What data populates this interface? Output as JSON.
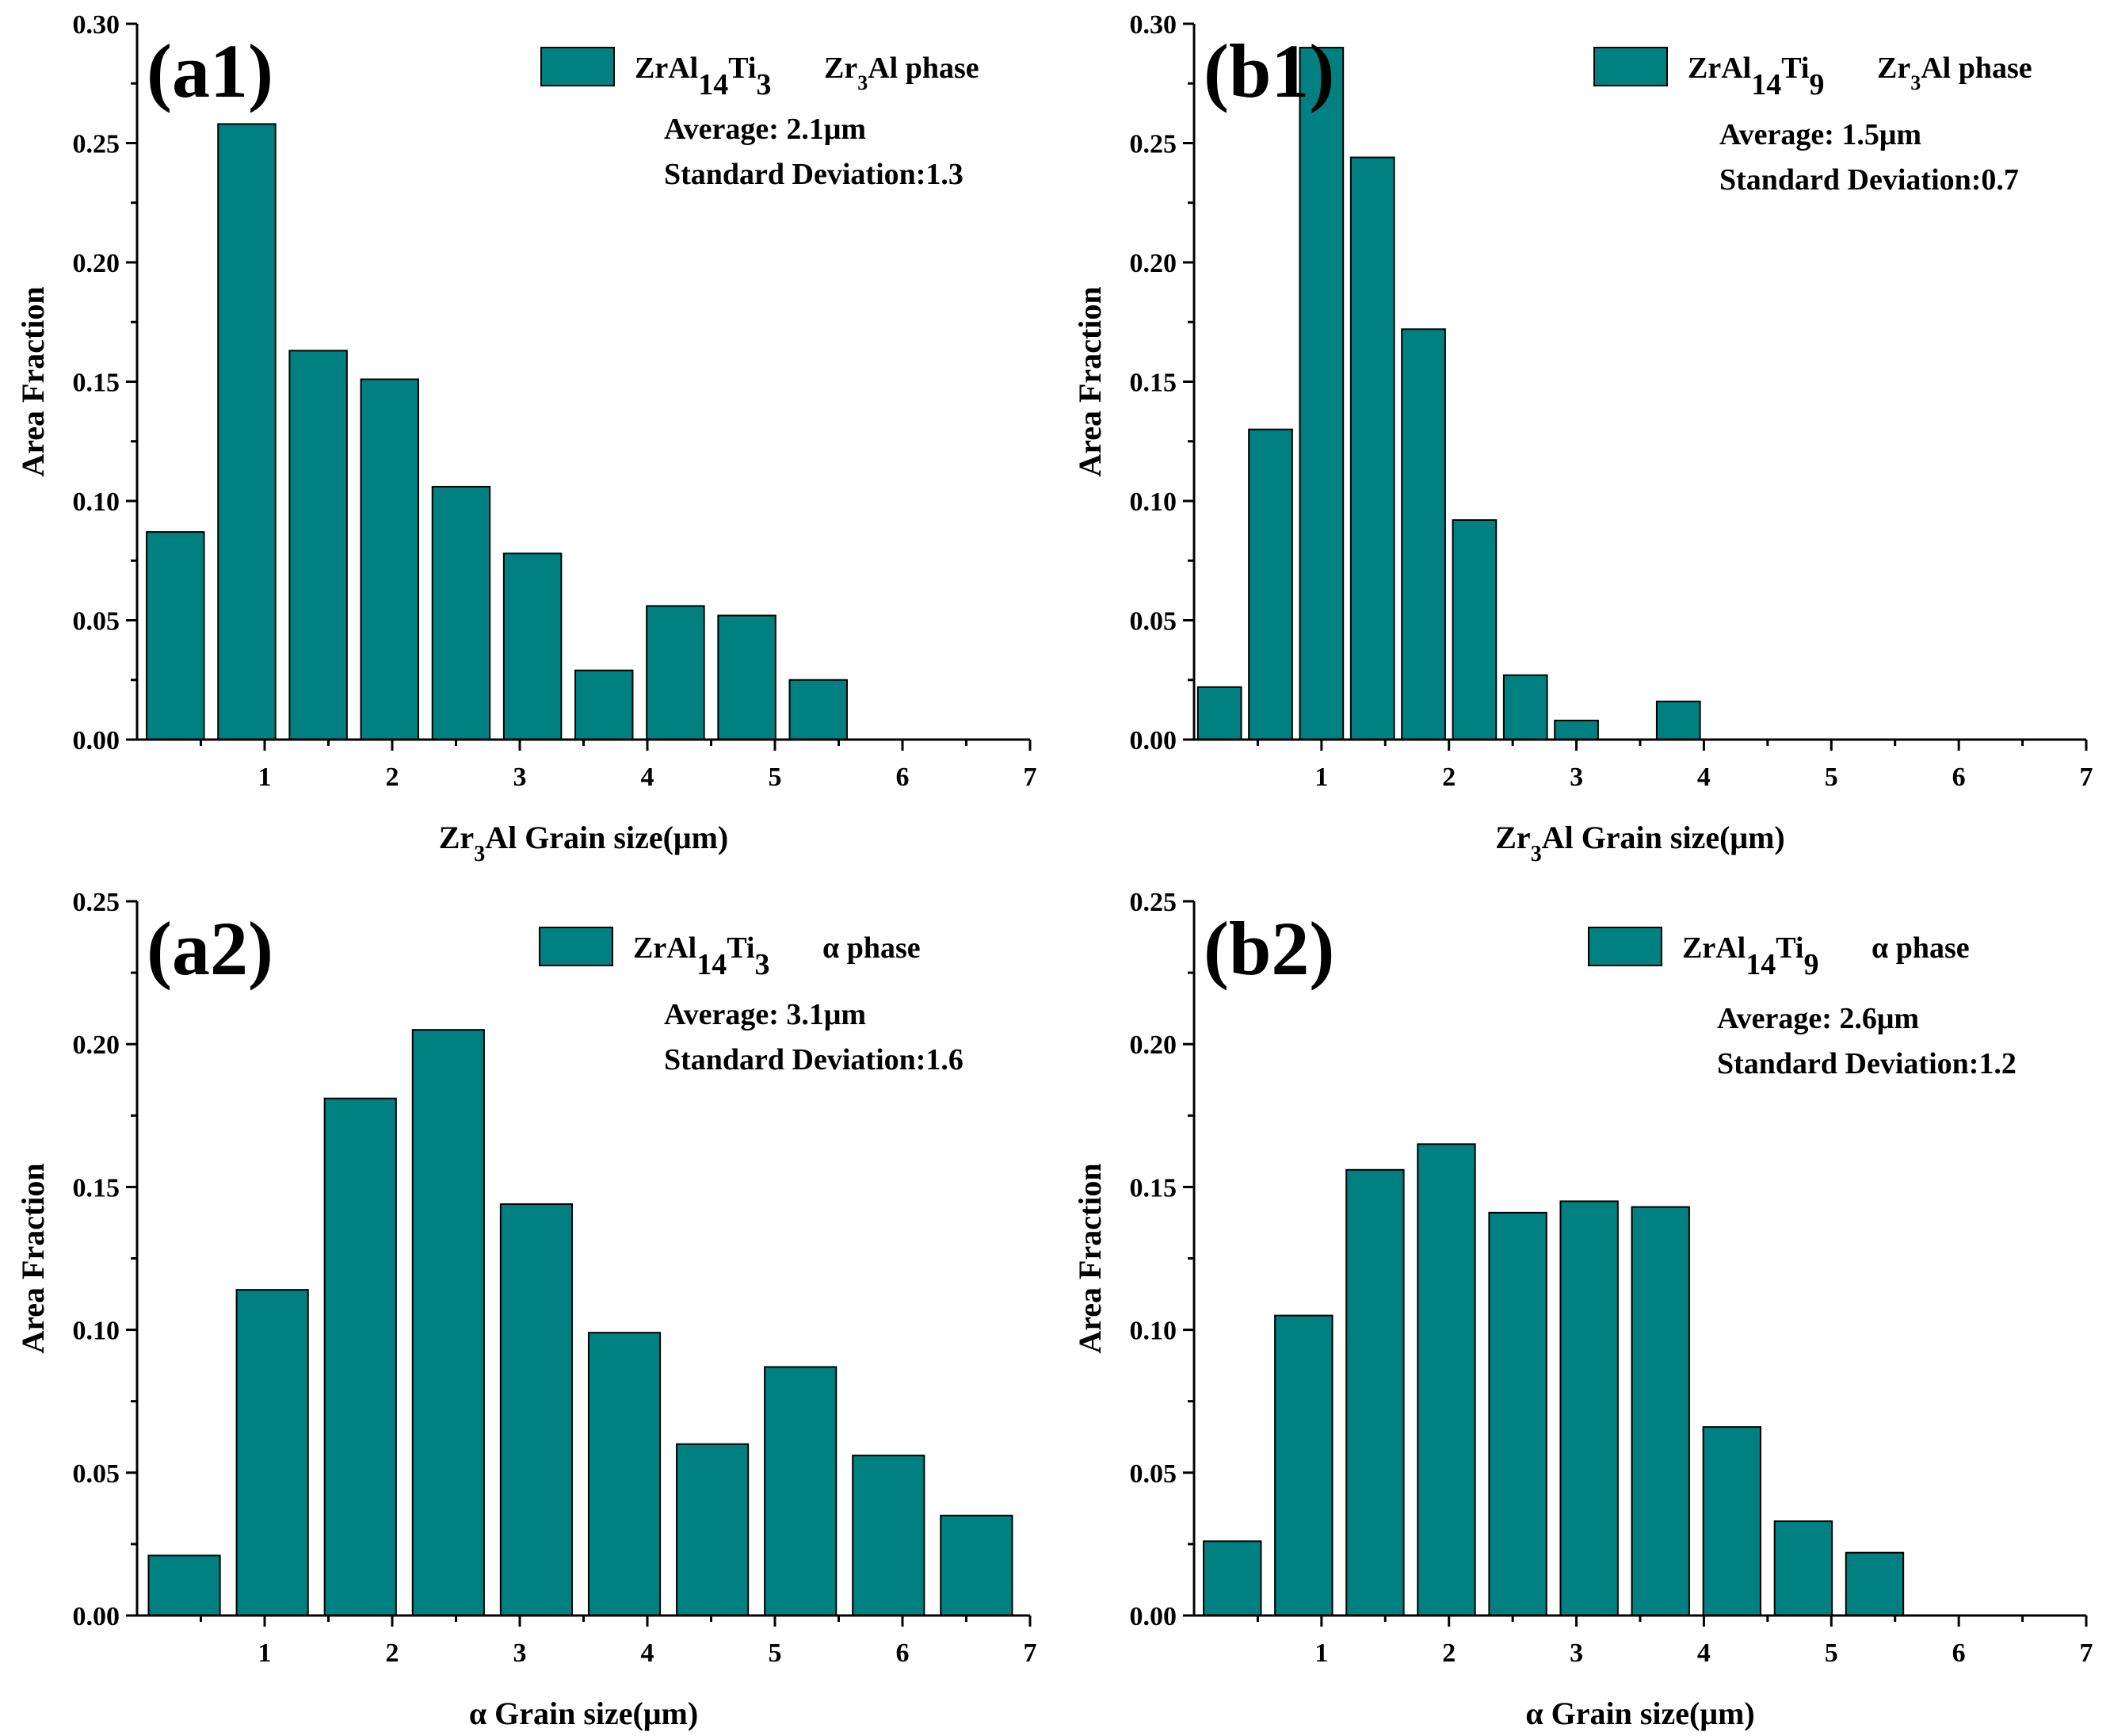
{
  "figure": {
    "bar_color": "#008080"
  },
  "chart_data": [
    {
      "type": "bar",
      "panel_label": "(a1)",
      "legend": {
        "alloy": "ZrAl14Ti3",
        "alloy_base": "ZrAl",
        "alloy_sub1": "14",
        "alloy_mid": "Ti",
        "alloy_sub2": "3",
        "phase": "Zr3Al phase",
        "phase_pre": "Zr",
        "phase_sub": "3",
        "phase_post": "Al phase"
      },
      "stats": {
        "average": "Average: 2.1μm",
        "std": "Standard Deviation:1.3"
      },
      "xlabel": "Zr3Al Grain size(μm)",
      "xlabel_parts": {
        "pre": "Zr",
        "sub": "3",
        "post": "Al Grain size(μm)"
      },
      "ylabel": "Area Fraction",
      "xlim": [
        0,
        7
      ],
      "ylim": [
        0,
        0.3
      ],
      "xticks": [
        1,
        2,
        3,
        4,
        5,
        6,
        7
      ],
      "xtick_labels": [
        "1",
        "2",
        "3",
        "4",
        "5",
        "6",
        "7"
      ],
      "yticks": [
        0,
        0.05,
        0.1,
        0.15,
        0.2,
        0.25,
        0.3
      ],
      "ytick_labels": [
        "0.00",
        "0.05",
        "0.10",
        "0.15",
        "0.20",
        "0.25",
        "0.30"
      ],
      "bar_width": 0.45,
      "x": [
        0.3,
        0.86,
        1.42,
        1.98,
        2.54,
        3.1,
        3.66,
        4.22,
        4.78,
        5.34
      ],
      "values": [
        0.087,
        0.258,
        0.163,
        0.151,
        0.106,
        0.078,
        0.029,
        0.056,
        0.052,
        0.025
      ]
    },
    {
      "type": "bar",
      "panel_label": "(b1)",
      "legend": {
        "alloy": "ZrAl14Ti9",
        "alloy_base": "ZrAl",
        "alloy_sub1": "14",
        "alloy_mid": "Ti",
        "alloy_sub2": "9",
        "phase": "Zr3Al phase",
        "phase_pre": "Zr",
        "phase_sub": "3",
        "phase_post": "Al phase"
      },
      "stats": {
        "average": "Average: 1.5μm",
        "std": "Standard Deviation:0.7"
      },
      "xlabel": "Zr3Al Grain size(μm)",
      "xlabel_parts": {
        "pre": "Zr",
        "sub": "3",
        "post": "Al Grain size(μm)"
      },
      "ylabel": "Area Fraction",
      "xlim": [
        0,
        7
      ],
      "ylim": [
        0,
        0.3
      ],
      "xticks": [
        1,
        2,
        3,
        4,
        5,
        6,
        7
      ],
      "xtick_labels": [
        "1",
        "2",
        "3",
        "4",
        "5",
        "6",
        "7"
      ],
      "yticks": [
        0,
        0.05,
        0.1,
        0.15,
        0.2,
        0.25,
        0.3
      ],
      "ytick_labels": [
        "0.00",
        "0.05",
        "0.10",
        "0.15",
        "0.20",
        "0.25",
        "0.30"
      ],
      "bar_width": 0.34,
      "x": [
        0.2,
        0.6,
        1.0,
        1.4,
        1.8,
        2.2,
        2.6,
        3.0,
        3.4,
        3.8
      ],
      "values": [
        0.022,
        0.13,
        0.29,
        0.244,
        0.172,
        0.092,
        0.027,
        0.008,
        0.0,
        0.016
      ]
    },
    {
      "type": "bar",
      "panel_label": "(a2)",
      "legend": {
        "alloy": "ZrAl14Ti3",
        "alloy_base": "ZrAl",
        "alloy_sub1": "14",
        "alloy_mid": "Ti",
        "alloy_sub2": "3",
        "phase": "α phase",
        "phase_pre": "α phase",
        "phase_sub": "",
        "phase_post": ""
      },
      "stats": {
        "average": "Average: 3.1μm",
        "std": "Standard Deviation:1.6"
      },
      "xlabel": "α Grain size(μm)",
      "xlabel_parts": {
        "pre": "α Grain size(μm)",
        "sub": "",
        "post": ""
      },
      "ylabel": "Area Fraction",
      "xlim": [
        0,
        7
      ],
      "ylim": [
        0,
        0.25
      ],
      "xticks": [
        1,
        2,
        3,
        4,
        5,
        6,
        7
      ],
      "xtick_labels": [
        "1",
        "2",
        "3",
        "4",
        "5",
        "6",
        "7"
      ],
      "yticks": [
        0,
        0.05,
        0.1,
        0.15,
        0.2,
        0.25
      ],
      "ytick_labels": [
        "0.00",
        "0.05",
        "0.10",
        "0.15",
        "0.20",
        "0.25"
      ],
      "bar_width": 0.56,
      "x": [
        0.37,
        1.06,
        1.75,
        2.44,
        3.13,
        3.82,
        4.51,
        5.2,
        5.89,
        6.58
      ],
      "values": [
        0.021,
        0.114,
        0.181,
        0.205,
        0.144,
        0.099,
        0.06,
        0.087,
        0.056,
        0.035
      ]
    },
    {
      "type": "bar",
      "panel_label": "(b2)",
      "legend": {
        "alloy": "ZrAl14Ti9",
        "alloy_base": "ZrAl",
        "alloy_sub1": "14",
        "alloy_mid": "Ti",
        "alloy_sub2": "9",
        "phase": "α phase",
        "phase_pre": "α phase",
        "phase_sub": "",
        "phase_post": ""
      },
      "stats": {
        "average": "Average: 2.6μm",
        "std": "Standard Deviation:1.2"
      },
      "xlabel": "α Grain size(μm)",
      "xlabel_parts": {
        "pre": "α Grain size(μm)",
        "sub": "",
        "post": ""
      },
      "ylabel": "Area Fraction",
      "xlim": [
        0,
        7
      ],
      "ylim": [
        0,
        0.25
      ],
      "xticks": [
        1,
        2,
        3,
        4,
        5,
        6,
        7
      ],
      "xtick_labels": [
        "1",
        "2",
        "3",
        "4",
        "5",
        "6",
        "7"
      ],
      "yticks": [
        0,
        0.05,
        0.1,
        0.15,
        0.2,
        0.25
      ],
      "ytick_labels": [
        "0.00",
        "0.05",
        "0.10",
        "0.15",
        "0.20",
        "0.25"
      ],
      "bar_width": 0.45,
      "x": [
        0.3,
        0.86,
        1.42,
        1.98,
        2.54,
        3.1,
        3.66,
        4.22,
        4.78,
        5.34
      ],
      "values": [
        0.026,
        0.105,
        0.156,
        0.165,
        0.141,
        0.145,
        0.143,
        0.066,
        0.033,
        0.022
      ]
    }
  ]
}
